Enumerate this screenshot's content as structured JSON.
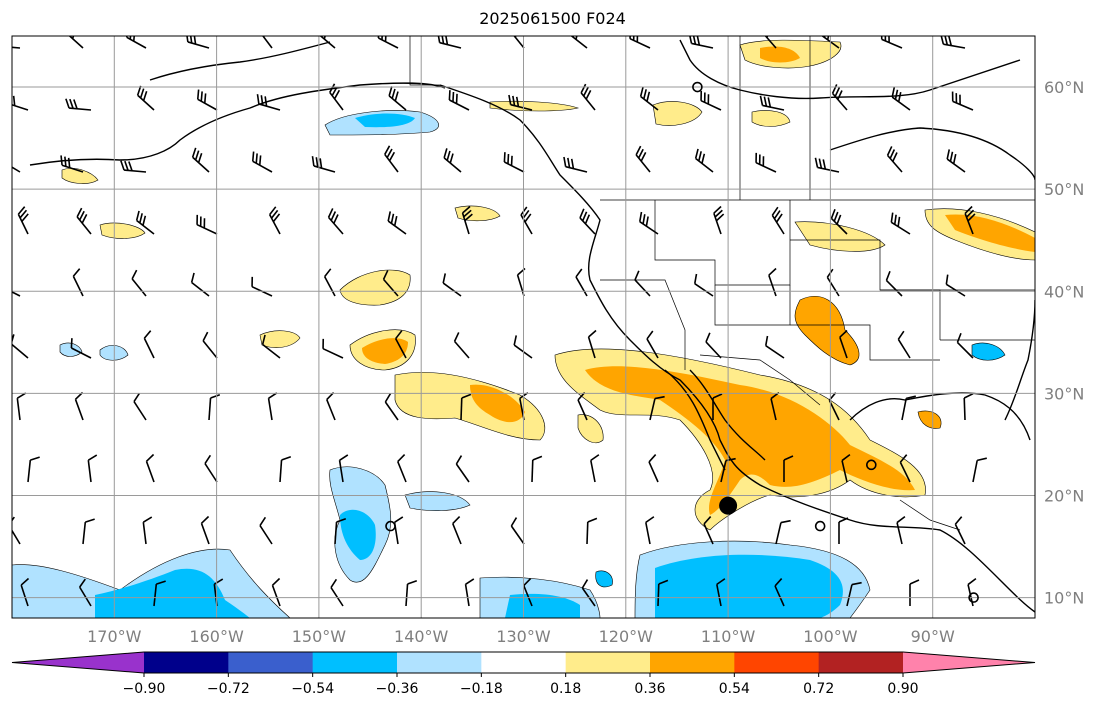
{
  "title": "2025061500 F024",
  "map": {
    "lat_labels": [
      "60°N",
      "50°N",
      "40°N",
      "30°N",
      "20°N",
      "10°N"
    ],
    "lat_values": [
      60,
      50,
      40,
      30,
      20,
      10
    ],
    "lon_labels": [
      "170°W",
      "160°W",
      "150°W",
      "140°W",
      "130°W",
      "120°W",
      "110°W",
      "100°W",
      "90°W"
    ],
    "lon_values": [
      -170,
      -160,
      -150,
      -140,
      -130,
      -120,
      -110,
      -100,
      -90
    ],
    "extent": {
      "lon_min": -180,
      "lon_max": -80,
      "lat_min": 8,
      "lat_max": 65
    },
    "grid": true,
    "coastline_color": "#000000",
    "gridline_color": "#9a9a9a",
    "markers": [
      {
        "name": "large-dot",
        "lon": -110,
        "lat": 19
      },
      {
        "name": "ring",
        "lon": -101,
        "lat": 17
      },
      {
        "name": "ring",
        "lon": -96,
        "lat": 23
      },
      {
        "name": "ring",
        "lon": -143,
        "lat": 17
      },
      {
        "name": "ring",
        "lon": -113,
        "lat": 60
      },
      {
        "name": "ring",
        "lon": -86,
        "lat": 10
      }
    ]
  },
  "colorbar": {
    "colors": [
      "#9932cc",
      "#00008b",
      "#3a5fcd",
      "#00bfff",
      "#b0e2ff",
      "#ffffff",
      "#ffec8b",
      "#ffa500",
      "#ff4500",
      "#b22222",
      "#ff82ab"
    ],
    "tick_labels": [
      "−0.90",
      "−0.72",
      "−0.54",
      "−0.36",
      "−0.18",
      "0.18",
      "0.36",
      "0.54",
      "0.72",
      "0.90"
    ],
    "tick_values": [
      -0.9,
      -0.72,
      -0.54,
      -0.36,
      -0.18,
      0.18,
      0.36,
      0.54,
      0.72,
      0.9
    ],
    "extend": "both"
  }
}
